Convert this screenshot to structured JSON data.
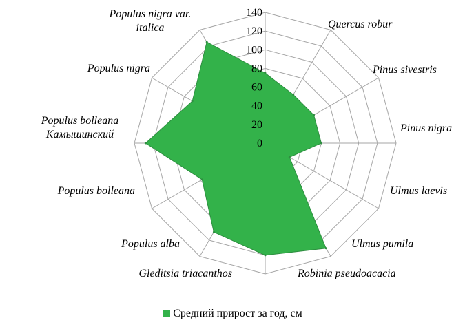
{
  "chart_data": {
    "type": "radar",
    "categories": [
      "Quercus robur",
      "Pinus sivestris",
      "Pinus nigra",
      "Ulmus laevis",
      "Ulmus pumila",
      "Robinia pseudoacacia",
      "Gleditsia triacanthos",
      "Populus alba",
      "Populus bolleana",
      "Populus bolleana Камышинский",
      "Populus nigra",
      "Populus nigra var. italica"
    ],
    "series": [
      {
        "name": "Средний прирост за год, см",
        "values": [
          75,
          60,
          60,
          60,
          30,
          130,
          120,
          110,
          78,
          128,
          90,
          125
        ]
      }
    ],
    "ylim": [
      0,
      140
    ],
    "ticks": [
      0,
      20,
      40,
      60,
      80,
      100,
      120,
      140
    ],
    "grid": true,
    "legend_position": "bottom",
    "colors": {
      "fill": "#33b24a",
      "stroke": "#2e8e40",
      "grid": "#a6a6a6"
    }
  }
}
